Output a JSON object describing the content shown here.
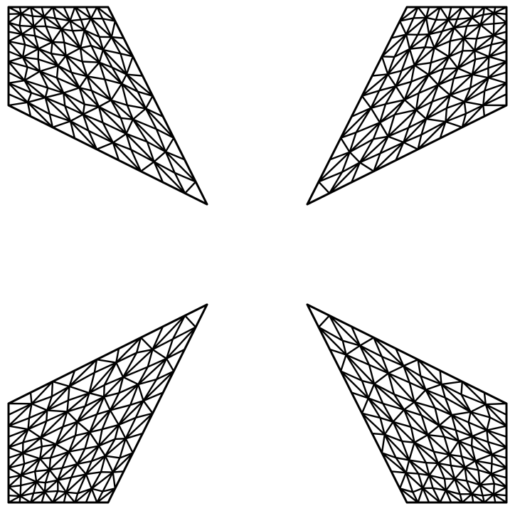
{
  "diagram": {
    "kind": "triangular-mesh",
    "stroke_color": "#000000",
    "background": "#ffffff",
    "pieces": [
      {
        "name": "top-left"
      },
      {
        "name": "top-right"
      },
      {
        "name": "bottom-left"
      },
      {
        "name": "bottom-right"
      }
    ]
  }
}
